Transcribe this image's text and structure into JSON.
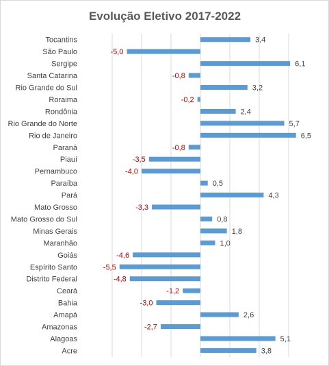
{
  "chart_data": {
    "type": "bar",
    "orientation": "horizontal",
    "title": "Evolução Eletivo 2017-2022",
    "xlabel": "",
    "ylabel": "",
    "xlim": [
      -7,
      7
    ],
    "grid": true,
    "legend": "none",
    "colors": {
      "bar": "#5b9bd5",
      "positive_label": "#404040",
      "negative_label": "#c00000",
      "gridline": "#d9d9d9"
    },
    "categories": [
      "Tocantins",
      "São Paulo",
      "Sergipe",
      "Santa Catarina",
      "Rio Grande do Sul",
      "Roraima",
      "Rondônia",
      "Rio Grande do Norte",
      "Rio de Janeiro",
      "Paraná",
      "Piauí",
      "Pernambuco",
      "Paraíba",
      "Pará",
      "Mato Grosso",
      "Mato Grosso do Sul",
      "Minas Gerais",
      "Maranhão",
      "Goiás",
      "Espírito Santo",
      "Distrito Federal",
      "Ceará",
      "Bahia",
      "Amapá",
      "Amazonas",
      "Alagoas",
      "Acre"
    ],
    "values": [
      3.4,
      -5.0,
      6.1,
      -0.8,
      3.2,
      -0.2,
      2.4,
      5.7,
      6.5,
      -0.8,
      -3.5,
      -4.0,
      0.5,
      4.3,
      -3.3,
      0.8,
      1.8,
      1.0,
      -4.6,
      -5.5,
      -4.8,
      -1.2,
      -3.0,
      2.6,
      -2.7,
      5.1,
      3.8
    ],
    "value_labels": [
      "3,4",
      "-5,0",
      "6,1",
      "-0,8",
      "3,2",
      "-0,2",
      "2,4",
      "5,7",
      "6,5",
      "-0,8",
      "-3,5",
      "-4,0",
      "0,5",
      "4,3",
      "-3,3",
      "0,8",
      "1,8",
      "1,0",
      "-4,6",
      "-5,5",
      "-4,8",
      "-1,2",
      "-3,0",
      "2,6",
      "-2,7",
      "5,1",
      "3,8"
    ]
  }
}
